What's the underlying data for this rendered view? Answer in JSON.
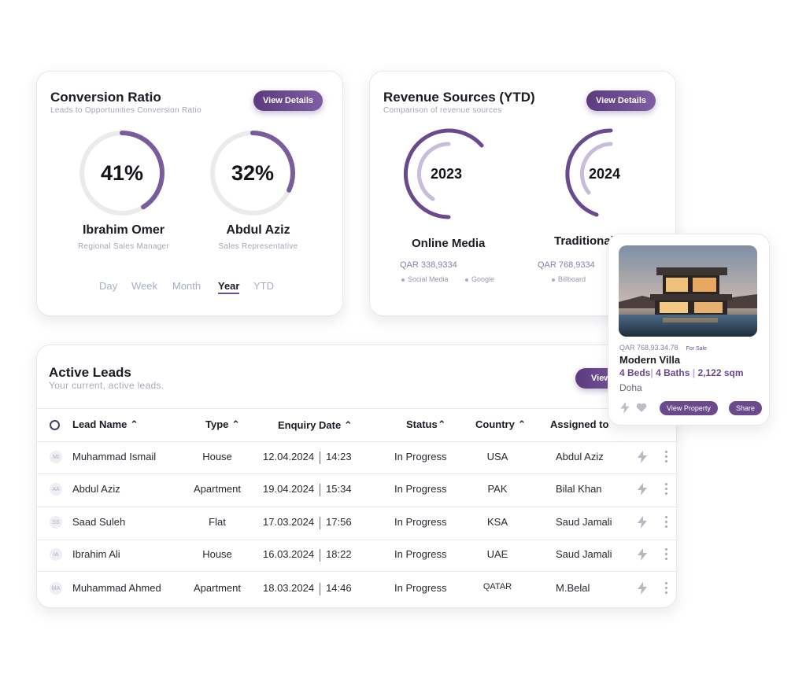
{
  "conversion": {
    "title": "Conversion Ratio",
    "subtitle": "Leads to Opportunities Conversion Ratio",
    "view_label": "View Details",
    "people": [
      {
        "value": "41%",
        "fraction": 0.41,
        "name": "Ibrahim Omer",
        "role": "Regional Sales Manager"
      },
      {
        "value": "32%",
        "fraction": 0.32,
        "name": "Abdul Aziz",
        "role": "Sales Representative"
      }
    ],
    "periods": [
      "Day",
      "Week",
      "Month",
      "Year",
      "YTD"
    ],
    "active_period": "Year"
  },
  "revenue": {
    "title": "Revenue Sources (YTD)",
    "subtitle": "Comparison of revenue sources",
    "view_label": "View Details",
    "sources": [
      {
        "year": "2023",
        "name": "Online Media",
        "amount": "QAR 338,9334",
        "legend": [
          "Social Media",
          "Google"
        ]
      },
      {
        "year": "2024",
        "name": "Traditional",
        "amount": "QAR 768,9334",
        "legend": [
          "Billboard"
        ]
      }
    ]
  },
  "leads": {
    "title": "Active Leads",
    "subtitle": "Your current, active leads.",
    "view_label": "View",
    "columns": [
      "Lead Name",
      "Type",
      "Enquiry Date",
      "Status",
      "Country",
      "Assigned to"
    ],
    "rows": [
      {
        "initials": "MI",
        "name": "Muhammad Ismail",
        "type": "House",
        "date": "12.04.2024",
        "time": "14:23",
        "status": "In Progress",
        "country": "USA",
        "assigned": "Abdul Aziz"
      },
      {
        "initials": "AA",
        "name": "Abdul Aziz",
        "type": "Apartment",
        "date": "19.04.2024",
        "time": "15:34",
        "status": "In Progress",
        "country": "PAK",
        "assigned": "Bilal Khan"
      },
      {
        "initials": "SS",
        "name": "Saad Suleh",
        "type": "Flat",
        "date": "17.03.2024",
        "time": "17:56",
        "status": "In Progress",
        "country": "KSA",
        "assigned": "Saud Jamali"
      },
      {
        "initials": "IA",
        "name": "Ibrahim Ali",
        "type": "House",
        "date": "16.03.2024",
        "time": "18:22",
        "status": "In Progress",
        "country": "UAE",
        "assigned": "Saud Jamali"
      },
      {
        "initials": "MA",
        "name": "Muhammad Ahmed",
        "type": "Apartment",
        "date": "18.03.2024",
        "time": "14:46",
        "status": "In Progress",
        "country": "QATAR",
        "assigned": "M.Belal"
      }
    ]
  },
  "property": {
    "price": "QAR 768,93.34.78",
    "badge": "For Sale",
    "name": "Modern Villa",
    "beds": "4 Beds",
    "baths": "4 Baths",
    "area": "2,122 sqm",
    "location": "Doha",
    "view_label": "View Property",
    "share_label": "Share"
  },
  "colors": {
    "accent": "#6d4e90",
    "accent_light": "#c9bbda",
    "ring_track": "#ebebee"
  },
  "icons": [
    "sort-up-icon",
    "bolt-icon",
    "kebab-menu-icon",
    "heart-icon",
    "select-all-icon"
  ]
}
